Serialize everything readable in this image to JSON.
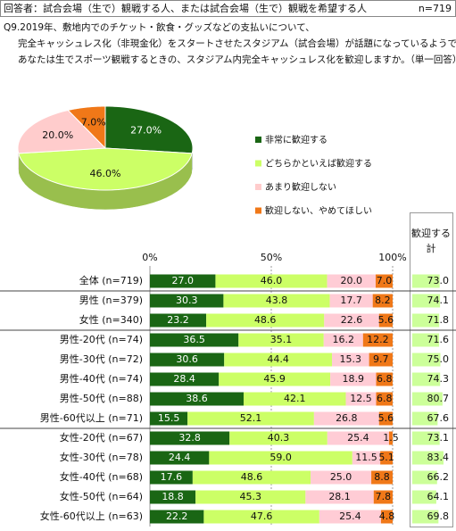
{
  "header": {
    "title": "回答者：試合会場（生で）観戦する人、または試合会場（生で）観戦を希望する人",
    "n": "n=719"
  },
  "question": [
    "Q9.2019年、敷地内でのチケット・飲食・グッズなどの支払いについて、",
    "完全キャッシュレス化（非現金化）をスタートさせたスタジアム（試合会場）が話題になっているようです。",
    "あなたは生でスポーツ観戦するときの、スタジアム内完全キャッシュレス化を歓迎しますか。（単一回答）"
  ],
  "chart_data": [
    {
      "type": "pie",
      "categories": [
        "非常に歓迎する",
        "どちらかといえば歓迎する",
        "あまり歓迎しない",
        "歓迎しない、やめてほしい"
      ],
      "values": [
        27.0,
        46.0,
        20.0,
        7.0
      ],
      "value_labels": [
        "27.0%",
        "46.0%",
        "20.0%",
        "7.0%"
      ],
      "colors": [
        "#1a6614",
        "#ccff66",
        "#ffcccc",
        "#f07818"
      ]
    },
    {
      "type": "stacked-bar",
      "categories": [
        "全体 (n=719)",
        "男性 (n=379)",
        "女性 (n=340)",
        "男性-20代 (n=74)",
        "男性-30代 (n=72)",
        "男性-40代 (n=74)",
        "男性-50代 (n=88)",
        "男性-60代以上 (n=71)",
        "女性-20代 (n=67)",
        "女性-30代 (n=78)",
        "女性-40代 (n=68)",
        "女性-50代 (n=64)",
        "女性-60代以上 (n=63)"
      ],
      "xlim": [
        0,
        100
      ],
      "xticks": [
        {
          "value": 0,
          "label": "0%"
        },
        {
          "value": 50,
          "label": "50%"
        },
        {
          "value": 100,
          "label": "100%"
        }
      ],
      "series": [
        {
          "color": "#1a6614",
          "values": [
            27.0,
            30.3,
            23.2,
            36.5,
            30.6,
            28.4,
            38.6,
            15.5,
            32.8,
            24.4,
            17.6,
            18.8,
            22.2
          ],
          "value_labels": [
            "27.0",
            "30.3",
            "23.2",
            "36.5",
            "30.6",
            "28.4",
            "38.6",
            "15.5",
            "32.8",
            "24.4",
            "17.6",
            "18.8",
            "22.2"
          ]
        },
        {
          "color": "#ccff66",
          "values": [
            46.0,
            43.8,
            48.6,
            35.1,
            44.4,
            45.9,
            42.1,
            52.1,
            40.3,
            59.0,
            48.6,
            45.3,
            47.6
          ],
          "value_labels": [
            "46.0",
            "43.8",
            "48.6",
            "35.1",
            "44.4",
            "45.9",
            "42.1",
            "52.1",
            "40.3",
            "59.0",
            "48.6",
            "45.3",
            "47.6"
          ]
        },
        {
          "color": "#ffccd5",
          "values": [
            20.0,
            17.7,
            22.6,
            16.2,
            15.3,
            18.9,
            12.5,
            26.8,
            25.4,
            11.5,
            25.0,
            28.1,
            25.4
          ],
          "value_labels": [
            "20.0",
            "17.7",
            "22.6",
            "16.2",
            "15.3",
            "18.9",
            "12.5",
            "26.8",
            "25.4",
            "11.5",
            "25.0",
            "28.1",
            "25.4"
          ]
        },
        {
          "color": "#f07818",
          "values": [
            7.0,
            8.2,
            5.6,
            12.2,
            9.7,
            6.8,
            6.8,
            5.6,
            1.5,
            5.1,
            8.8,
            7.8,
            4.8
          ],
          "value_labels": [
            "7.0",
            "8.2",
            "5.6",
            "12.2",
            "9.7",
            "6.8",
            "6.8",
            "5.6",
            "1.5",
            "5.1",
            "8.8",
            "7.8",
            "4.8"
          ]
        }
      ]
    },
    {
      "type": "total",
      "title_lines": [
        "歓迎する",
        "計"
      ],
      "color": "#ccff99",
      "values": [
        73.0,
        74.1,
        71.8,
        71.6,
        75.0,
        74.3,
        80.7,
        67.6,
        73.1,
        83.4,
        66.2,
        64.1,
        69.8
      ],
      "value_labels": [
        "73.0",
        "74.1",
        "71.8",
        "71.6",
        "75.0",
        "74.3",
        "80.7",
        "67.6",
        "73.1",
        "83.4",
        "66.2",
        "64.1",
        "69.8"
      ]
    }
  ]
}
